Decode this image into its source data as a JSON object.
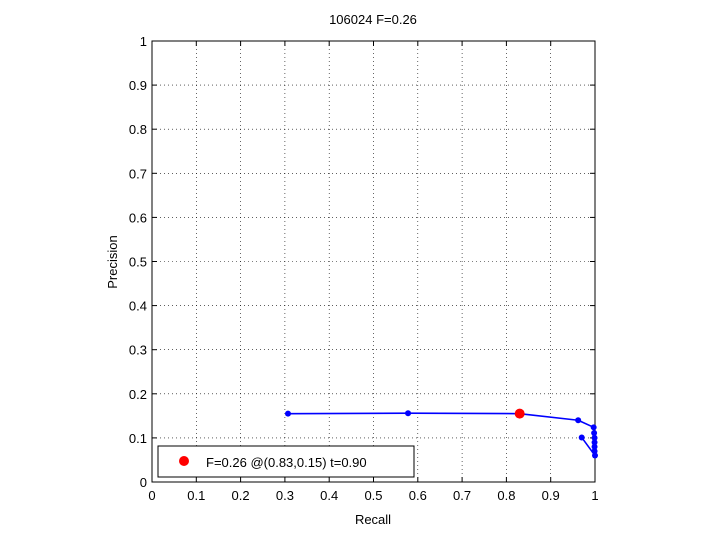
{
  "chart_data": {
    "type": "line",
    "title": "106024 F=0.26",
    "xlabel": "Recall",
    "ylabel": "Precision",
    "xlim": [
      0,
      1
    ],
    "ylim": [
      0,
      1
    ],
    "xticks": [
      "0",
      "0.1",
      "0.2",
      "0.3",
      "0.4",
      "0.5",
      "0.6",
      "0.7",
      "0.8",
      "0.9",
      "1"
    ],
    "yticks": [
      "0",
      "0.1",
      "0.2",
      "0.3",
      "0.4",
      "0.5",
      "0.6",
      "0.7",
      "0.8",
      "0.9",
      "1"
    ],
    "grid": true,
    "series": [
      {
        "color": "#0000ff",
        "points": [
          [
            0.307,
            0.155
          ],
          [
            0.578,
            0.156
          ],
          [
            0.83,
            0.155
          ],
          [
            0.962,
            0.14
          ],
          [
            0.997,
            0.124
          ],
          [
            0.998,
            0.111
          ],
          [
            0.999,
            0.1
          ],
          [
            0.999,
            0.09
          ],
          [
            0.999,
            0.08
          ],
          [
            0.999,
            0.07
          ],
          [
            1.0,
            0.06
          ],
          [
            0.97,
            0.101
          ]
        ]
      }
    ],
    "best_point": {
      "x": 0.83,
      "y": 0.155,
      "color": "#ff0000"
    },
    "legend": {
      "label": "F=0.26 @(0.83,0.15) t=0.90",
      "position": "bottom-left"
    }
  }
}
